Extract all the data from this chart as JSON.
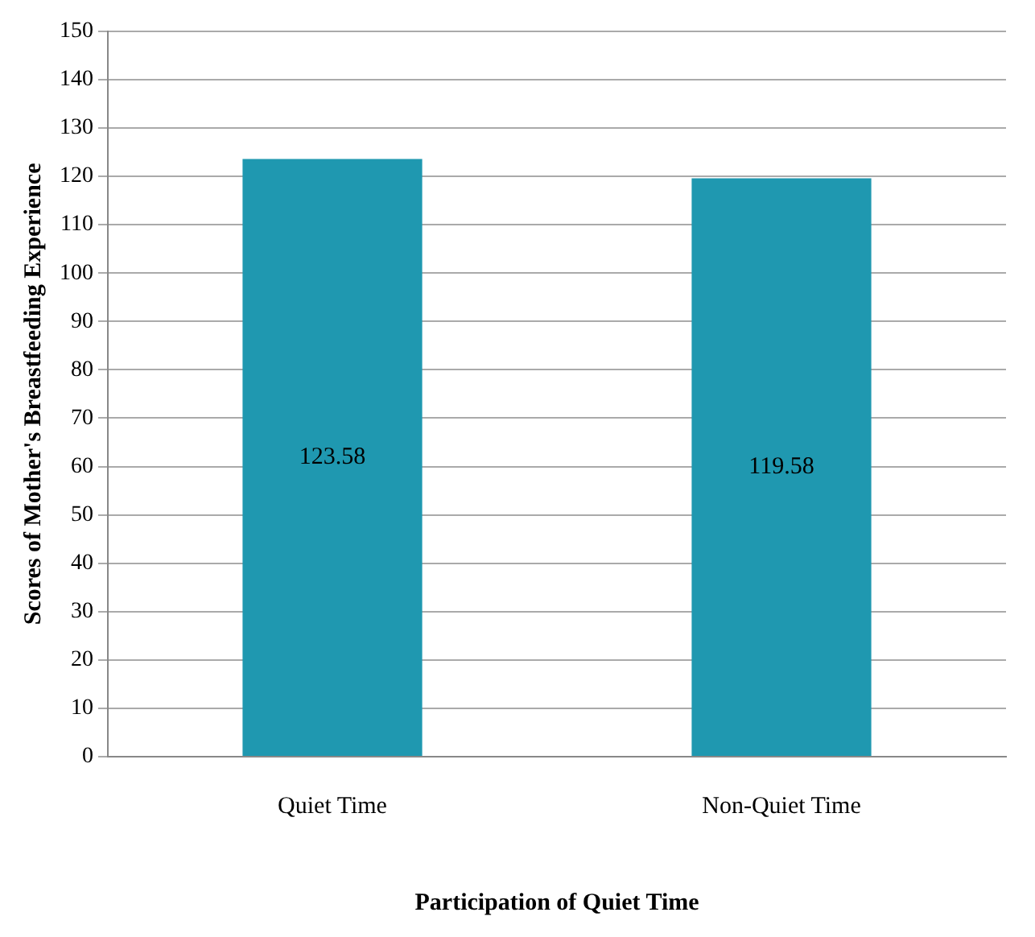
{
  "chart_data": {
    "type": "bar",
    "xlabel": "Participation of Quiet Time",
    "ylabel": "Scores of Mother's Breastfeeding Experience",
    "categories": [
      "Quiet Time",
      "Non-Quiet Time"
    ],
    "values": [
      123.58,
      119.58
    ],
    "color": "#1f98b0",
    "ylim": [
      0,
      150
    ],
    "yticks": [
      0,
      10,
      20,
      30,
      40,
      50,
      60,
      70,
      80,
      90,
      100,
      110,
      120,
      130,
      140,
      150
    ],
    "grid": "y",
    "legend": false,
    "data_labels": true
  }
}
